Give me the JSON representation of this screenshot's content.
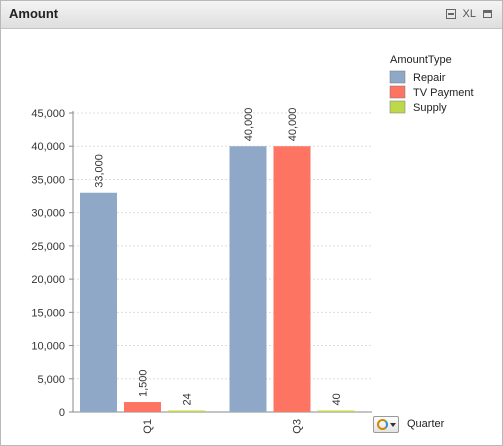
{
  "window": {
    "title": "Amount",
    "xl_label": "XL"
  },
  "dimension": {
    "label": "Quarter"
  },
  "colors": {
    "Repair": "#8fa8c8",
    "TV Payment": "#fe7462",
    "Supply": "#bdd94a"
  },
  "chart_data": {
    "type": "bar",
    "title": "Amount",
    "xlabel": "Quarter",
    "ylabel": "",
    "categories": [
      "Q1",
      "Q3"
    ],
    "series": [
      {
        "name": "Repair",
        "values": [
          33000,
          40000
        ]
      },
      {
        "name": "TV Payment",
        "values": [
          1500,
          40000
        ]
      },
      {
        "name": "Supply",
        "values": [
          24,
          40
        ]
      }
    ],
    "ylim": [
      0,
      45000
    ],
    "yticks": [
      0,
      5000,
      10000,
      15000,
      20000,
      25000,
      30000,
      35000,
      40000,
      45000
    ],
    "ytick_labels": [
      "0",
      "5,000",
      "10,000",
      "15,000",
      "20,000",
      "25,000",
      "30,000",
      "35,000",
      "40,000",
      "45,000"
    ],
    "data_labels": [
      [
        "33,000",
        "40,000"
      ],
      [
        "1,500",
        "40,000"
      ],
      [
        "24",
        "40"
      ]
    ],
    "grid": true,
    "legend": {
      "title": "AmountType",
      "position": "top-right"
    }
  }
}
